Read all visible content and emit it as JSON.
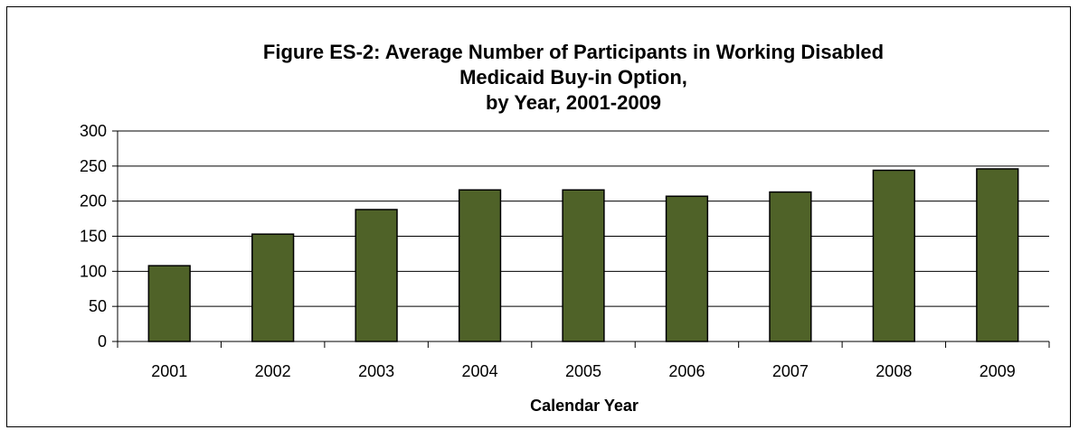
{
  "chart_data": {
    "type": "bar",
    "title_lines": [
      "Figure ES-2: Average Number of Participants in Working Disabled",
      "Medicaid Buy-in Option,",
      "by Year, 2001-2009"
    ],
    "xlabel": "Calendar Year",
    "ylabel": "",
    "categories": [
      "2001",
      "2002",
      "2003",
      "2004",
      "2005",
      "2006",
      "2007",
      "2008",
      "2009"
    ],
    "values": [
      108,
      153,
      188,
      216,
      216,
      207,
      213,
      244,
      246
    ],
    "ylim": [
      0,
      300
    ],
    "yticks": [
      "0",
      "50",
      "100",
      "150",
      "200",
      "250",
      "300"
    ],
    "grid": true,
    "legend": "none",
    "bar_color": "#4F6228",
    "bar_edge_color": "#000000"
  }
}
